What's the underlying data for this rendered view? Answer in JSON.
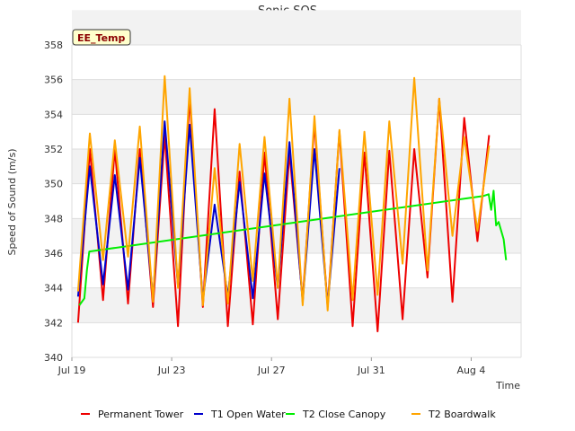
{
  "chart_data": {
    "type": "line",
    "title": "Sonic SOS",
    "xlabel": "Time",
    "ylabel": "Speed of Sound (m/s)",
    "badge": "EE_Temp",
    "ylim": [
      340,
      358
    ],
    "yticks": [
      340,
      342,
      344,
      346,
      348,
      350,
      352,
      354,
      356,
      358
    ],
    "xlim_days_label_start": "Jul 19",
    "xticks": [
      {
        "label": "Jul 19",
        "day": 0
      },
      {
        "label": "Jul 23",
        "day": 4
      },
      {
        "label": "Jul 27",
        "day": 8
      },
      {
        "label": "Jul 31",
        "day": 12
      },
      {
        "label": "Aug 4",
        "day": 16
      }
    ],
    "xlim": [
      0,
      18
    ],
    "grid": true,
    "legend": "bottom",
    "series": [
      {
        "name": "Permanent Tower",
        "color": "#ee0000",
        "peaks": [
          352.0,
          352.0,
          352.0,
          352.8,
          355.0,
          354.3,
          350.7,
          351.8,
          351.8,
          353.5,
          353.0,
          351.8,
          351.9,
          352.0,
          354.9,
          353.8,
          352.8
        ],
        "troughs": [
          342.0,
          343.3,
          343.1,
          342.9,
          341.8,
          342.9,
          341.8,
          341.9,
          342.2,
          343.3,
          342.9,
          341.8,
          341.5,
          342.2,
          344.6,
          343.2,
          346.7
        ]
      },
      {
        "name": "T1 Open Water",
        "color": "#0000cc",
        "peaks": [
          351.0,
          350.5,
          351.5,
          353.6,
          353.4,
          348.8,
          350.1,
          350.6,
          352.4,
          352.0,
          350.9
        ],
        "troughs": [
          343.5,
          344.2,
          343.9,
          343.4,
          344.1,
          343.3,
          343.5,
          343.4,
          344.0,
          343.2,
          343.0
        ]
      },
      {
        "name": "T2 Close Canopy",
        "color": "#00ee00",
        "points": [
          [
            0.3,
            343.0
          ],
          [
            0.5,
            343.4
          ],
          [
            0.6,
            345.0
          ],
          [
            0.7,
            346.1
          ],
          [
            16.5,
            349.3
          ],
          [
            16.7,
            349.4
          ],
          [
            16.8,
            348.5
          ],
          [
            16.9,
            349.6
          ],
          [
            17.0,
            347.6
          ],
          [
            17.1,
            347.8
          ],
          [
            17.3,
            346.8
          ],
          [
            17.4,
            345.6
          ]
        ]
      },
      {
        "name": "T2 Boardwalk",
        "color": "#ffa500",
        "peaks": [
          352.9,
          352.5,
          353.3,
          356.2,
          355.5,
          350.9,
          352.3,
          352.7,
          354.9,
          353.9,
          353.1,
          353.0,
          353.6,
          356.1,
          354.9,
          352.7,
          352.2
        ],
        "troughs": [
          343.8,
          345.6,
          345.8,
          343.2,
          344.0,
          343.0,
          343.1,
          344.4,
          344.0,
          343.0,
          342.7,
          343.3,
          343.6,
          345.4,
          345.0,
          347.0,
          347.3
        ]
      }
    ]
  }
}
